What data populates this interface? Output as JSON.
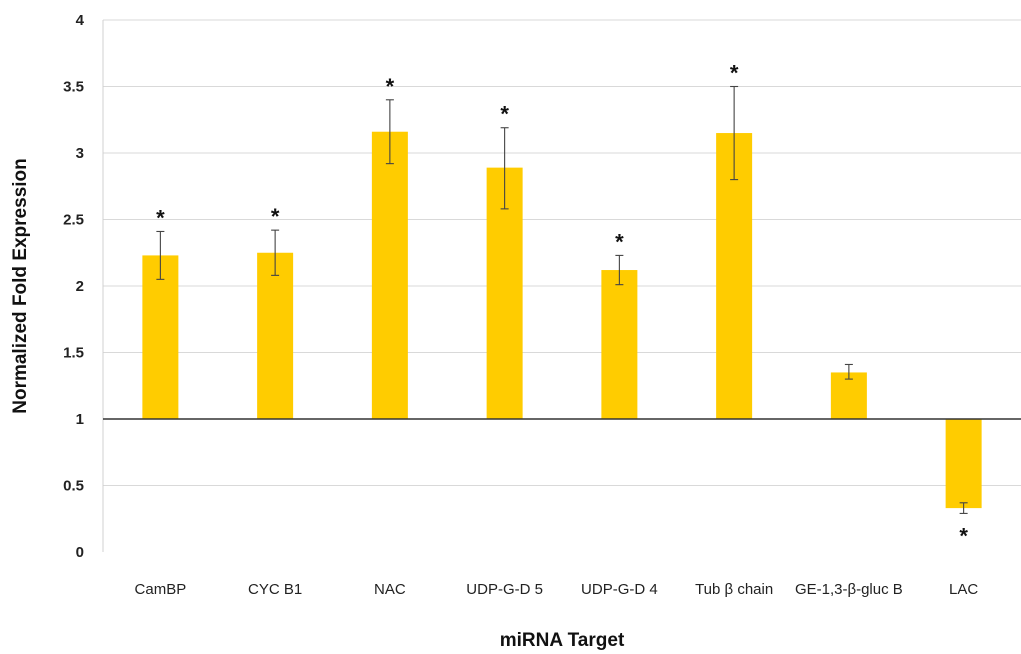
{
  "chart_data": {
    "type": "bar",
    "title": "",
    "xlabel": "miRNA Target",
    "ylabel": "Normalized Fold Expression",
    "ylim": [
      0,
      4
    ],
    "yticks": [
      "0",
      "0.5",
      "1",
      "1.5",
      "2",
      "2.5",
      "3",
      "3.5",
      "4"
    ],
    "baseline": 1,
    "grid": true,
    "bar_color": "#FFCC00",
    "categories": [
      "CamBP",
      "CYC B1",
      "NAC",
      "UDP-G-D 5",
      "UDP-G-D 4",
      "Tub β chain",
      "GE-1,3-β-gluc B",
      "LAC"
    ],
    "values": [
      2.23,
      2.25,
      3.16,
      2.89,
      2.12,
      3.15,
      1.35,
      0.33
    ],
    "error_low": [
      2.05,
      2.08,
      2.92,
      2.58,
      2.01,
      2.8,
      1.3,
      0.29
    ],
    "error_high": [
      2.41,
      2.42,
      3.4,
      3.19,
      2.23,
      3.5,
      1.41,
      0.37
    ],
    "significance": [
      "*",
      "*",
      "*",
      "*",
      "*",
      "*",
      "",
      "*"
    ]
  }
}
